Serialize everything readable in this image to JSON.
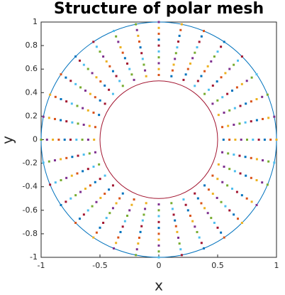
{
  "chart_data": {
    "type": "polar-mesh",
    "title": "Structure of polar mesh",
    "x_label": "x",
    "y_label": "y",
    "angles": [
      0,
      11.25,
      22.5,
      33.75,
      45,
      56.25,
      67.5,
      78.75,
      90,
      101.25,
      112.5,
      123.75,
      135,
      146.25,
      157.5,
      168.75,
      180,
      191.25,
      202.5,
      213.75,
      225,
      236.25,
      247.5,
      258.75,
      270,
      281.25,
      292.5,
      303.75,
      315,
      326.25,
      337.5,
      348.75
    ],
    "radii": [
      0.55,
      0.6,
      0.65,
      0.7,
      0.75,
      0.8,
      0.85,
      0.9,
      0.95,
      1
    ],
    "colors": [
      "#0072bd",
      "#d95319",
      "#edb120",
      "#7e2f8e",
      "#77ac30",
      "#4dbeee",
      "#a2142f"
    ],
    "circles": [
      {
        "radius": 1,
        "color": "#0072bd"
      },
      {
        "radius": 0.5,
        "color": "#a2142f"
      }
    ],
    "xlim": [
      -1,
      1
    ],
    "ylim": [
      -1,
      1
    ],
    "xticks": [
      -1,
      -0.5,
      0,
      0.5,
      1
    ],
    "yticks": [
      -1,
      -0.8,
      -0.6,
      -0.4,
      -0.2,
      0,
      0.2,
      0.4,
      0.6,
      0.8,
      1
    ]
  }
}
